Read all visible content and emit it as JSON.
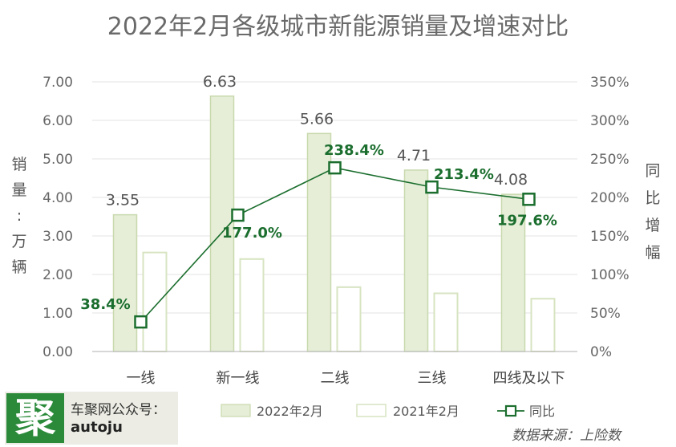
{
  "chart_data": {
    "type": "bar",
    "title": "2022年2月各级城市新能源销量及增速对比",
    "ylabel": "销量：万辆",
    "y2label": "同比增幅",
    "categories": [
      "一线",
      "新一线",
      "二线",
      "三线",
      "四线及以下"
    ],
    "ylim": [
      0,
      7
    ],
    "yticks": [
      "0.00",
      "1.00",
      "2.00",
      "3.00",
      "4.00",
      "5.00",
      "6.00",
      "7.00"
    ],
    "y2lim": [
      0,
      350
    ],
    "y2ticks": [
      "0%",
      "50%",
      "100%",
      "150%",
      "200%",
      "250%",
      "300%",
      "350%"
    ],
    "grid": true,
    "series": [
      {
        "name": "2022年2月",
        "type": "bar",
        "color": "#e6eed7",
        "stroke": "#c9d9ae",
        "values": [
          3.55,
          6.63,
          5.66,
          4.71,
          4.08
        ],
        "labels": [
          "3.55",
          "6.63",
          "5.66",
          "4.71",
          "4.08"
        ]
      },
      {
        "name": "2021年2月",
        "type": "bar",
        "color": "#ffffff",
        "stroke": "#d7e4c1",
        "values": [
          2.57,
          2.4,
          1.67,
          1.51,
          1.37
        ]
      },
      {
        "name": "同比",
        "type": "line",
        "axis": "right",
        "color": "#1b6e2e",
        "values": [
          38.4,
          177.0,
          238.4,
          213.4,
          197.6
        ],
        "labels": [
          "38.4%",
          "177.0%",
          "238.4%",
          "213.4%",
          "197.6%"
        ]
      }
    ],
    "legend_position": "bottom"
  },
  "brand": {
    "logo_char": "聚",
    "name": "车聚网公众号：",
    "handle": "autoju"
  },
  "source": "数据来源：上险数"
}
